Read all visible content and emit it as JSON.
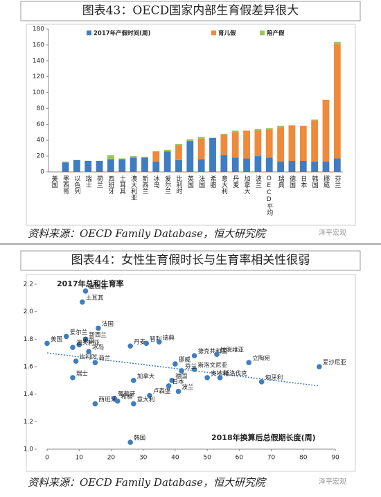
{
  "chart_data": [
    {
      "type": "stacked_bar",
      "title": "图表43：OECD国家内部生育假差异很大",
      "categories": [
        "美国",
        "墨西哥",
        "以色列",
        "瑞士",
        "荷兰",
        "西班牙",
        "土耳其",
        "澳大利亚",
        "新西兰",
        "冰岛",
        "爱尔兰",
        "比利时",
        "英国",
        "法国",
        "希腊",
        "意大利",
        "丹麦",
        "加拿大",
        "波兰",
        "OECD平均",
        "瑞典",
        "德国",
        "日本",
        "韩国",
        "挪威",
        "芬兰"
      ],
      "series": [
        {
          "name": "2017年产假时间(周)",
          "color": "#3f7dc0",
          "values": [
            0,
            12,
            15,
            14,
            14,
            16,
            16,
            18,
            18,
            13,
            26,
            15,
            39,
            16,
            43,
            21,
            18,
            17,
            20,
            18,
            13,
            14,
            14,
            13,
            13,
            17
          ]
        },
        {
          "name": "育儿假",
          "color": "#ee8a3c",
          "values": [
            0,
            0,
            0,
            0,
            0,
            0,
            0,
            0,
            0,
            13,
            0,
            19,
            0,
            26,
            0,
            26,
            32,
            35,
            32,
            36,
            43,
            44,
            44,
            52,
            78,
            144
          ]
        },
        {
          "name": "陪产假",
          "color": "#9bc55a",
          "values": [
            0,
            1,
            0,
            0,
            0,
            5,
            1,
            2,
            1,
            0,
            2,
            1,
            2,
            2,
            0,
            1,
            2,
            0,
            2,
            1,
            2,
            1,
            0,
            1,
            0,
            3
          ]
        }
      ],
      "ylim": [
        0,
        180
      ],
      "yticks": [
        0,
        20,
        40,
        60,
        80,
        100,
        120,
        140,
        160,
        180
      ],
      "source": "资料来源：OECD Family Database，恒大研究院",
      "watermark": "泽平宏观"
    },
    {
      "type": "scatter",
      "title": "图表44：女性生育假时长与生育率相关性很弱",
      "y_label": "2017年总和生育率",
      "x_label": "2018年换算后总假期长度(周)",
      "color": "#3f7dc0",
      "points": [
        {
          "label": "美国",
          "x": 0,
          "y": 1.77
        },
        {
          "label": "墨西哥",
          "x": 12,
          "y": 2.15
        },
        {
          "label": "土耳其",
          "x": 11,
          "y": 2.07
        },
        {
          "label": "爱尔兰",
          "x": 6,
          "y": 1.82
        },
        {
          "label": "新西兰",
          "x": 12,
          "y": 1.8
        },
        {
          "label": "英国",
          "x": 10,
          "y": 1.76
        },
        {
          "label": "法国",
          "x": 16,
          "y": 1.88
        },
        {
          "label": "澳大利亚",
          "x": 8,
          "y": 1.74
        },
        {
          "label": "冰岛",
          "x": 13,
          "y": 1.71
        },
        {
          "label": "比利时",
          "x": 9,
          "y": 1.64
        },
        {
          "label": "荷兰",
          "x": 15,
          "y": 1.63
        },
        {
          "label": "瑞士",
          "x": 8,
          "y": 1.52
        },
        {
          "label": "丹麦",
          "x": 26,
          "y": 1.75
        },
        {
          "label": "智利",
          "x": 31,
          "y": 1.77
        },
        {
          "label": "瑞典",
          "x": 35,
          "y": 1.78
        },
        {
          "label": "加拿大",
          "x": 27,
          "y": 1.5
        },
        {
          "label": "捷克共和国",
          "x": 46,
          "y": 1.68
        },
        {
          "label": "拉脱维亚",
          "x": 53,
          "y": 1.69
        },
        {
          "label": "挪威",
          "x": 40,
          "y": 1.62
        },
        {
          "label": "斯洛文尼亚",
          "x": 46,
          "y": 1.58
        },
        {
          "label": "德国",
          "x": 39,
          "y": 1.5
        },
        {
          "label": "芬兰",
          "x": 42,
          "y": 1.57
        },
        {
          "label": "日本",
          "x": 38,
          "y": 1.46
        },
        {
          "label": "波兰",
          "x": 41,
          "y": 1.42
        },
        {
          "label": "卢森堡",
          "x": 32,
          "y": 1.39
        },
        {
          "label": "葡萄牙",
          "x": 21,
          "y": 1.37
        },
        {
          "label": "希腊",
          "x": 22,
          "y": 1.35
        },
        {
          "label": "西班牙",
          "x": 15,
          "y": 1.33
        },
        {
          "label": "意大利",
          "x": 27,
          "y": 1.33
        },
        {
          "label": "韩国",
          "x": 26,
          "y": 1.05
        },
        {
          "label": "奥地利",
          "x": 50,
          "y": 1.52
        },
        {
          "label": "斯洛伐克",
          "x": 54,
          "y": 1.52
        },
        {
          "label": "匈牙利",
          "x": 67,
          "y": 1.49
        },
        {
          "label": "立陶宛",
          "x": 63,
          "y": 1.63
        },
        {
          "label": "爱沙尼亚",
          "x": 85,
          "y": 1.6
        }
      ],
      "trend_line": {
        "x": [
          0,
          85
        ],
        "y": [
          1.7,
          1.46
        ]
      },
      "xlim": [
        0,
        90
      ],
      "xticks": [
        0,
        10,
        20,
        30,
        40,
        50,
        60,
        70,
        80,
        90
      ],
      "ylim": [
        1.0,
        2.2
      ],
      "yticks": [
        {
          "value": 1.0,
          "label": "1.0"
        },
        1.2,
        1.4,
        1.6,
        1.8,
        {
          "value": 2.0,
          "label": "2.0"
        },
        2.2
      ],
      "source": "资料来源：OECD Family Database，恒大研究院",
      "watermark": "泽平宏观"
    }
  ]
}
